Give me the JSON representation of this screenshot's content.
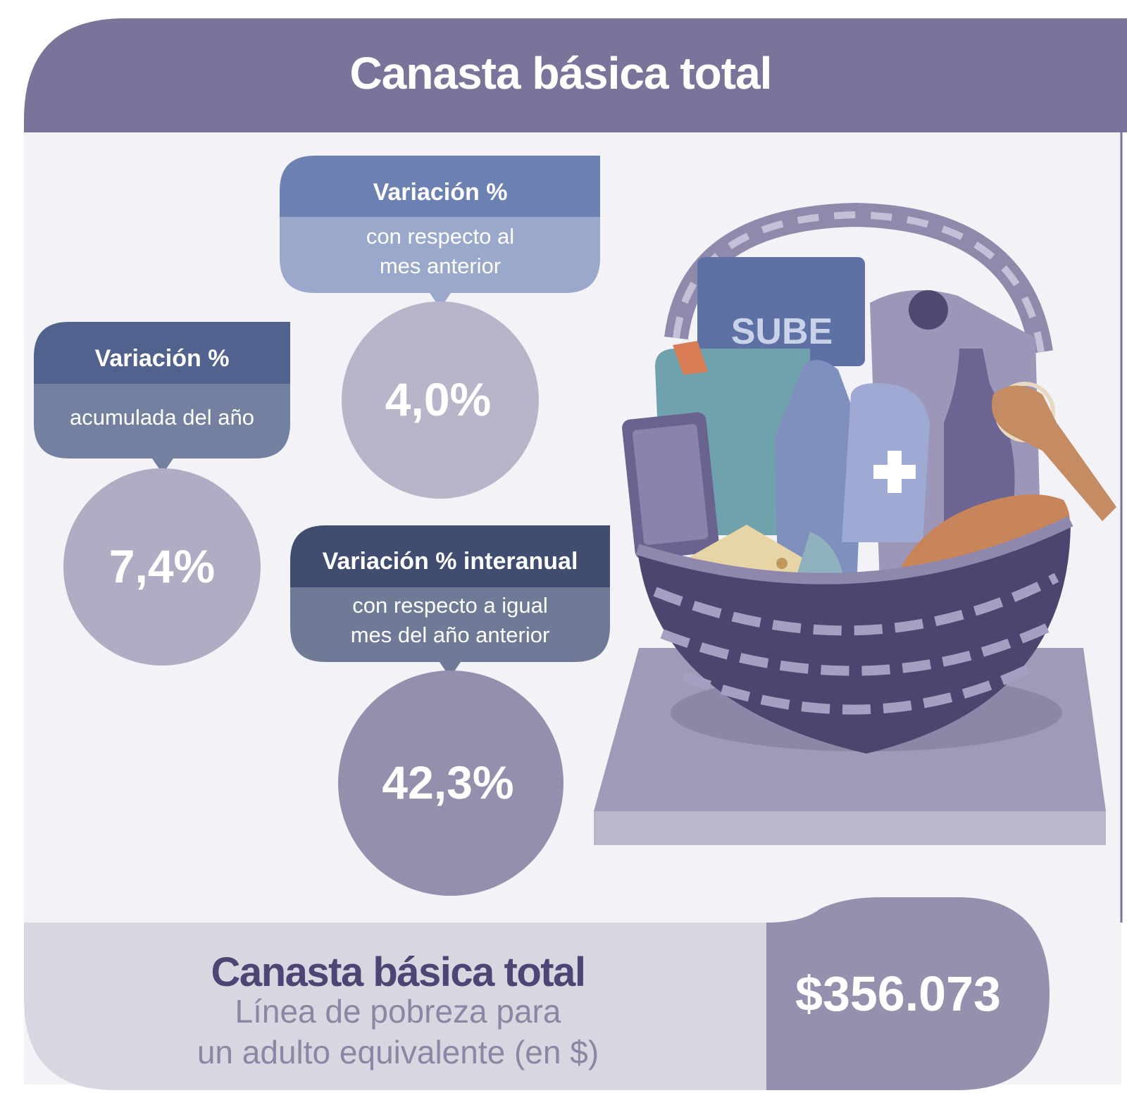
{
  "header": {
    "title": "Canasta básica total"
  },
  "cards": [
    {
      "heading": "Variación %",
      "lines": [
        "con respecto al",
        "mes anterior"
      ],
      "value": "4,0%"
    },
    {
      "heading": "Variación %",
      "lines": [
        "acumulada del año"
      ],
      "value": "7,4%"
    },
    {
      "heading": "Variación % interanual",
      "lines": [
        "con respecto a igual",
        "mes del año anterior"
      ],
      "value": "42,3%"
    }
  ],
  "illustration": {
    "card_label": "SUBE"
  },
  "footer": {
    "title": "Canasta básica total",
    "lines": [
      "Línea de pobreza para",
      "un adulto equivalente (en $)"
    ],
    "amount": "$356.073"
  }
}
